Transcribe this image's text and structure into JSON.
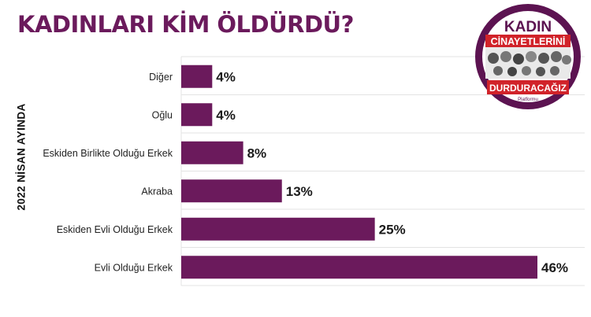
{
  "title": "KADINLARI KİM ÖLDÜRDÜ?",
  "side_label": "2022 NİSAN AYINDA",
  "logo": {
    "line1": "KADIN",
    "line2": "CİNAYETLERİNİ",
    "line3": "DURDURACAĞIZ",
    "line4": "Platformu",
    "color_dark": "#5c1351",
    "color_red": "#d1232a"
  },
  "colors": {
    "title": "#6b1a5c",
    "bar": "#6b1a5c",
    "grid": "#e3e3e3",
    "text": "#222222"
  },
  "chart_data": {
    "type": "bar",
    "orientation": "horizontal",
    "categories": [
      "Diğer",
      "Oğlu",
      "Eskiden Birlikte Olduğu Erkek",
      "Akraba",
      "Eskiden Evli Olduğu Erkek",
      "Evli Olduğu Erkek"
    ],
    "values": [
      4,
      4,
      8,
      13,
      25,
      46
    ],
    "data_labels": [
      "4%",
      "4%",
      "8%",
      "13%",
      "25%",
      "46%"
    ],
    "title": "KADINLARI KİM ÖLDÜRDÜ?",
    "ylabel": "2022 NİSAN AYINDA",
    "xlim": [
      0,
      46
    ],
    "grid": true,
    "legend": "none"
  }
}
